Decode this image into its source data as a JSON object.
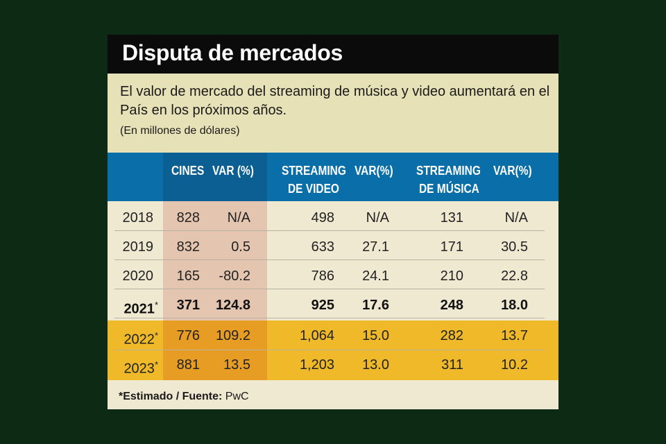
{
  "chart_data": {
    "type": "table",
    "title": "Disputa de mercados",
    "subtitle": "El valor de mercado del streaming de música y video aumentará en el País en los próximos años.",
    "units": "(En millones de dólares)",
    "columns": [
      "",
      "CINES",
      "VAR (%)",
      "STREAMING DE VIDEO",
      "VAR(%)",
      "STREAMING DE MÚSICA",
      "VAR(%)"
    ],
    "rows": [
      {
        "year": "2018",
        "mark": "",
        "cines": "828",
        "cines_var": "N/A",
        "video": "498",
        "video_var": "N/A",
        "musica": "131",
        "musica_var": "N/A"
      },
      {
        "year": "2019",
        "mark": "",
        "cines": "832",
        "cines_var": "0.5",
        "video": "633",
        "video_var": "27.1",
        "musica": "171",
        "musica_var": "30.5"
      },
      {
        "year": "2020",
        "mark": "",
        "cines": "165",
        "cines_var": "-80.2",
        "video": "786",
        "video_var": "24.1",
        "musica": "210",
        "musica_var": "22.8"
      },
      {
        "year": "2021",
        "mark": "*",
        "cines": "371",
        "cines_var": "124.8",
        "video": "925",
        "video_var": "17.6",
        "musica": "248",
        "musica_var": "18.0"
      },
      {
        "year": "2022",
        "mark": "*",
        "cines": "776",
        "cines_var": "109.2",
        "video": "1,064",
        "video_var": "15.0",
        "musica": "282",
        "musica_var": "13.7"
      },
      {
        "year": "2023",
        "mark": "*",
        "cines": "881",
        "cines_var": "13.5",
        "video": "1,203",
        "video_var": "13.0",
        "musica": "311",
        "musica_var": "10.2"
      }
    ],
    "footer_bold": "*Estimado / Fuente:",
    "footer_source": " PwC"
  },
  "headers": {
    "cines": "CINES",
    "cines_var": "VAR (%)",
    "video_line1": "STREAMING",
    "video_line2": "DE VIDEO",
    "video_var": "VAR(%)",
    "musica_line1": "STREAMING",
    "musica_line2": "DE MÚSICA",
    "musica_var": "VAR(%)"
  },
  "colors": {
    "background": "#0d2a14",
    "title_bar": "#0b0b0b",
    "subtitle_panel": "#e7e1b7",
    "header_band": "#0a6fa8",
    "cines_column": "#e3c5b0",
    "estimate_band": "#f0b929",
    "cines_estimate": "#e79c24"
  }
}
